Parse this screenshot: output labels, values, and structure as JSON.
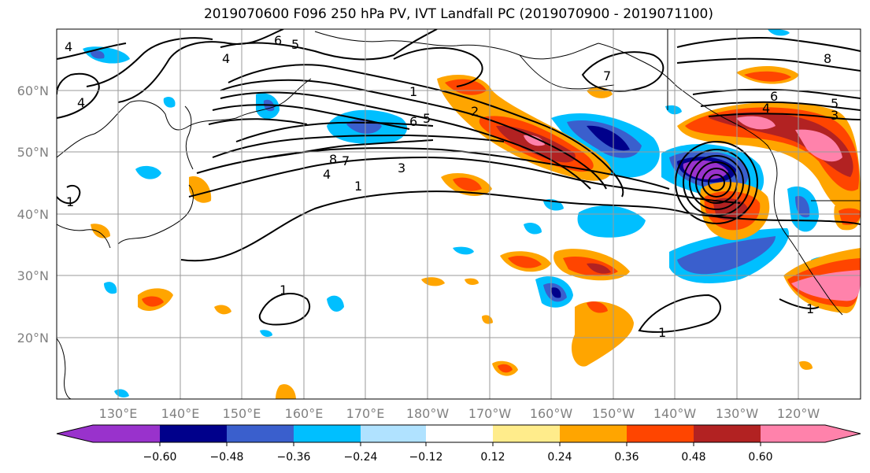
{
  "title": "2019070600 F096 250 hPa PV, IVT Landfall PC (2019070900 - 2019071100)",
  "map": {
    "lat_labels": [
      "60°N",
      "50°N",
      "40°N",
      "30°N",
      "20°N"
    ],
    "lon_labels": [
      "130°E",
      "140°E",
      "150°E",
      "160°E",
      "170°E",
      "180°W",
      "170°W",
      "160°W",
      "150°W",
      "140°W",
      "130°W",
      "120°W"
    ],
    "contour_labels": [
      "4",
      "4",
      "6",
      "5",
      "4",
      "1",
      "2",
      "6",
      "5",
      "8",
      "7",
      "4",
      "3",
      "1",
      "1",
      "1",
      "1",
      "6",
      "4",
      "5",
      "3",
      "8",
      "7",
      "1"
    ]
  },
  "colorbar": {
    "tick_labels": [
      "−0.60",
      "−0.48",
      "−0.36",
      "−0.24",
      "−0.12",
      "0.12",
      "0.24",
      "0.36",
      "0.48",
      "0.60"
    ],
    "colors": [
      "#9932cc",
      "#00008b",
      "#3a5fcd",
      "#00bfff",
      "#b0e2ff",
      "#ffffff",
      "#ffec8b",
      "#ffa500",
      "#ff4500",
      "#b22222",
      "#ff82ab"
    ]
  }
}
